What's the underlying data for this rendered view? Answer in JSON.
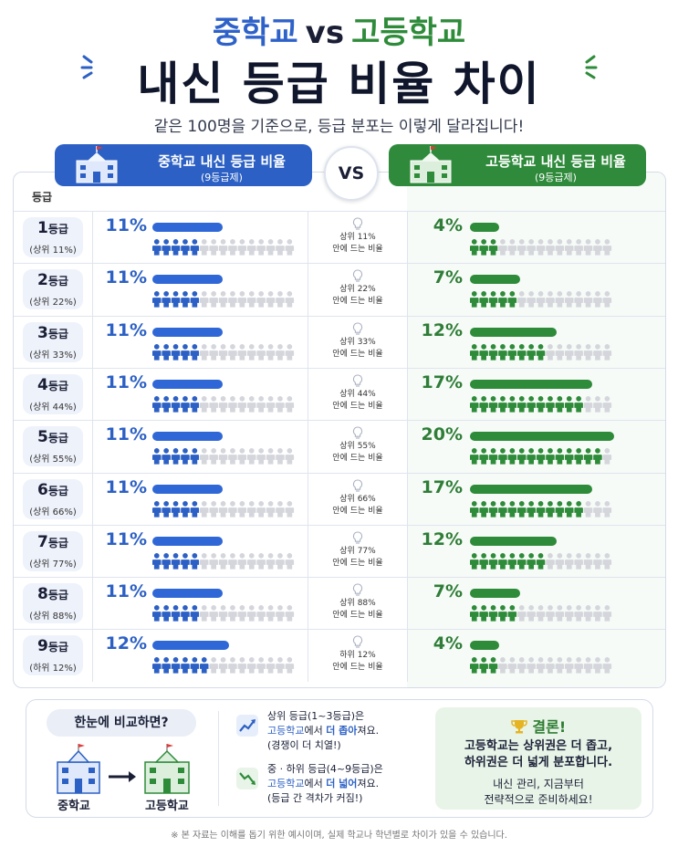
{
  "title": {
    "middle_school": "중학교",
    "vs": "vs",
    "high_school": "고등학교",
    "main": "내신 등급 비율 차이"
  },
  "subtitle": "같은 100명을 기준으로, 등급 분포는 이렇게 달라집니다!",
  "header": {
    "middle": {
      "title": "중학교 내신 등급 비율",
      "sub": "(9등급제)"
    },
    "vs": "VS",
    "high": {
      "title": "고등학교 내신 등급 비율",
      "sub": "(9등급제)"
    },
    "grade_column": "등급"
  },
  "colors": {
    "middle": "#2c60c4",
    "high": "#2e8b3a",
    "icon_gray": "#d4d6dc"
  },
  "rows": [
    {
      "grade_num": "1",
      "grade_unit": "등급",
      "range": "(상위 11%)",
      "ms_pct": "11%",
      "ms_value": 11,
      "hs_pct": "4%",
      "hs_value": 4,
      "mid_line1": "상위 11%",
      "mid_line2": "안에 드는 비율"
    },
    {
      "grade_num": "2",
      "grade_unit": "등급",
      "range": "(상위 22%)",
      "ms_pct": "11%",
      "ms_value": 11,
      "hs_pct": "7%",
      "hs_value": 7,
      "mid_line1": "상위 22%",
      "mid_line2": "안에 드는 비율"
    },
    {
      "grade_num": "3",
      "grade_unit": "등급",
      "range": "(상위 33%)",
      "ms_pct": "11%",
      "ms_value": 11,
      "hs_pct": "12%",
      "hs_value": 12,
      "mid_line1": "상위 33%",
      "mid_line2": "안에 드는 비율"
    },
    {
      "grade_num": "4",
      "grade_unit": "등급",
      "range": "(상위 44%)",
      "ms_pct": "11%",
      "ms_value": 11,
      "hs_pct": "17%",
      "hs_value": 17,
      "mid_line1": "상위 44%",
      "mid_line2": "안에 드는 비율"
    },
    {
      "grade_num": "5",
      "grade_unit": "등급",
      "range": "(상위 55%)",
      "ms_pct": "11%",
      "ms_value": 11,
      "hs_pct": "20%",
      "hs_value": 20,
      "mid_line1": "상위 55%",
      "mid_line2": "안에 드는 비율"
    },
    {
      "grade_num": "6",
      "grade_unit": "등급",
      "range": "(상위 66%)",
      "ms_pct": "11%",
      "ms_value": 11,
      "hs_pct": "17%",
      "hs_value": 17,
      "mid_line1": "상위 66%",
      "mid_line2": "안에 드는 비율"
    },
    {
      "grade_num": "7",
      "grade_unit": "등급",
      "range": "(상위 77%)",
      "ms_pct": "11%",
      "ms_value": 11,
      "hs_pct": "12%",
      "hs_value": 12,
      "mid_line1": "상위 77%",
      "mid_line2": "안에 드는 비율"
    },
    {
      "grade_num": "8",
      "grade_unit": "등급",
      "range": "(상위 88%)",
      "ms_pct": "11%",
      "ms_value": 11,
      "hs_pct": "7%",
      "hs_value": 7,
      "mid_line1": "상위 88%",
      "mid_line2": "안에 드는 비율"
    },
    {
      "grade_num": "9",
      "grade_unit": "등급",
      "range": "(하위 12%)",
      "ms_pct": "12%",
      "ms_value": 12,
      "hs_pct": "4%",
      "hs_value": 4,
      "mid_line1": "하위 12%",
      "mid_line2": "안에 드는 비율"
    }
  ],
  "bottom": {
    "compare_title": "한눈에 비교하면?",
    "left_label": "중학교",
    "right_label": "고등학교",
    "item1": {
      "l1": "상위 등급(1~3등급)은",
      "l2a": "고등학교",
      "l2b": "에서 ",
      "l2c": "더 좁아",
      "l2d": "져요.",
      "l3": "(경쟁이 더 치열!)"
    },
    "item2": {
      "l1": "중 · 하위 등급(4~9등급)은",
      "l2a": "고등학교",
      "l2b": "에서 ",
      "l2c": "더 넓어",
      "l2d": "져요.",
      "l3": "(등급 간 격차가 커짐!)"
    },
    "conclusion_title": "결론!",
    "conclusion_l1": "고등학교는 상위권은 더 좁고,",
    "conclusion_l2": "하위권은 더 넓게 분포합니다.",
    "conclusion_l3": "내신 관리, 지금부터",
    "conclusion_l4": "전략적으로 준비하세요!"
  },
  "footer": "※ 본 자료는 이해를 돕기 위한 예시이며, 실제 학교나 학년별로 차이가 있을 수 있습니다."
}
